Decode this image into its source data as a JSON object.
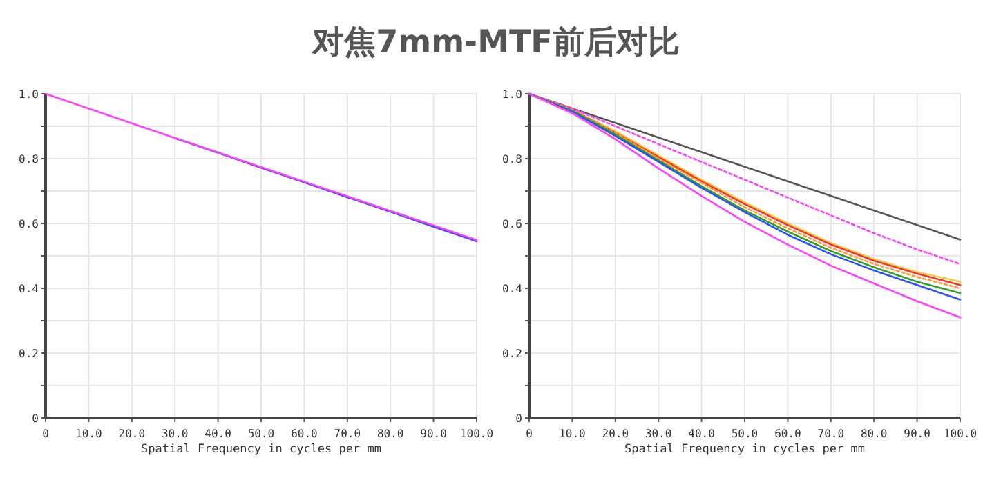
{
  "chart_data": [
    {
      "type": "line",
      "title": "对焦7mm-MTF前后对比",
      "xlabel": "Spatial Frequency in cycles per mm",
      "x": [
        0,
        10,
        20,
        30,
        40,
        50,
        60,
        70,
        80,
        90,
        100
      ],
      "xlim": [
        0,
        100
      ],
      "ylim": [
        0,
        1
      ],
      "xticks": [
        0,
        {
          "value": 10,
          "label": "10.0"
        },
        {
          "value": 20,
          "label": "20.0"
        },
        {
          "value": 30,
          "label": "30.0"
        },
        {
          "value": 40,
          "label": "40.0"
        },
        {
          "value": 50,
          "label": "50.0"
        },
        {
          "value": 60,
          "label": "60.0"
        },
        {
          "value": 70,
          "label": "70.0"
        },
        {
          "value": 80,
          "label": "80.0"
        },
        {
          "value": 90,
          "label": "90.0"
        },
        {
          "value": 100,
          "label": "100.0"
        }
      ],
      "yticks": [
        0,
        {
          "value": 0.1,
          "label": null
        },
        0.2,
        {
          "value": 0.3,
          "label": null
        },
        0.4,
        {
          "value": 0.5,
          "label": null
        },
        0.6,
        {
          "value": 0.7,
          "label": null
        },
        0.8,
        {
          "value": 0.9,
          "label": null
        },
        {
          "value": 1,
          "label": "1.0"
        }
      ],
      "grid": true,
      "series": [
        {
          "color": "#3050ff",
          "values": [
            null,
            null,
            null,
            0.863,
            0.818,
            0.772,
            0.727,
            0.681,
            0.636,
            0.59,
            0.545
          ]
        },
        {
          "color": "#ff40ff",
          "values": [
            1,
            0.955,
            0.909,
            0.864,
            0.819,
            0.774,
            0.729,
            0.684,
            0.639,
            0.594,
            0.549
          ]
        }
      ]
    },
    {
      "type": "line",
      "xlabel": "Spatial Frequency in cycles per mm",
      "x": [
        0,
        10,
        20,
        30,
        40,
        50,
        60,
        70,
        80,
        90,
        100
      ],
      "xlim": [
        0,
        100
      ],
      "ylim": [
        0,
        1
      ],
      "xticks": [
        0,
        {
          "value": 10,
          "label": "10.0"
        },
        {
          "value": 20,
          "label": "20.0"
        },
        {
          "value": 30,
          "label": "30.0"
        },
        {
          "value": 40,
          "label": "40.0"
        },
        {
          "value": 50,
          "label": "50.0"
        },
        {
          "value": 60,
          "label": "60.0"
        },
        {
          "value": 70,
          "label": "70.0"
        },
        {
          "value": 80,
          "label": "80.0"
        },
        {
          "value": 90,
          "label": "90.0"
        },
        {
          "value": 100,
          "label": "100.0"
        }
      ],
      "yticks": [
        0,
        {
          "value": 0.1,
          "label": null
        },
        0.2,
        {
          "value": 0.3,
          "label": null
        },
        0.4,
        {
          "value": 0.5,
          "label": null
        },
        0.6,
        {
          "value": 0.7,
          "label": null
        },
        0.8,
        {
          "value": 0.9,
          "label": null
        },
        {
          "value": 1,
          "label": "1.0"
        }
      ],
      "grid": true,
      "series": [
        {
          "color": "#555555",
          "values": [
            1,
            0.955,
            0.91,
            0.865,
            0.82,
            0.775,
            0.73,
            0.685,
            0.64,
            0.595,
            0.55
          ]
        },
        {
          "color": "#ff40ff",
          "line_style": "dotted",
          "values": [
            1,
            0.955,
            0.9,
            0.845,
            0.79,
            0.735,
            0.68,
            0.625,
            0.57,
            0.52,
            0.475
          ]
        },
        {
          "color": "#e8d040",
          "values": [
            1,
            0.95,
            0.885,
            0.81,
            0.735,
            0.665,
            0.6,
            0.54,
            0.49,
            0.45,
            0.42
          ]
        },
        {
          "color": "#ff3030",
          "values": [
            1,
            0.95,
            0.88,
            0.805,
            0.73,
            0.66,
            0.595,
            0.535,
            0.485,
            0.445,
            0.41
          ]
        },
        {
          "color": "#ff9a30",
          "line_style": "dotted",
          "values": [
            1,
            0.95,
            0.88,
            0.8,
            0.725,
            0.65,
            0.585,
            0.525,
            0.475,
            0.435,
            0.4
          ]
        },
        {
          "color": "#30a030",
          "values": [
            1,
            0.948,
            0.875,
            0.795,
            0.715,
            0.64,
            0.575,
            0.515,
            0.465,
            0.42,
            0.385
          ]
        },
        {
          "color": "#3050ff",
          "values": [
            1,
            0.945,
            0.87,
            0.79,
            0.71,
            0.635,
            0.565,
            0.505,
            0.455,
            0.41,
            0.365
          ]
        },
        {
          "color": "#ff40ff",
          "values": [
            1,
            0.94,
            0.86,
            0.77,
            0.685,
            0.605,
            0.535,
            0.47,
            0.415,
            0.36,
            0.31
          ]
        }
      ]
    }
  ]
}
